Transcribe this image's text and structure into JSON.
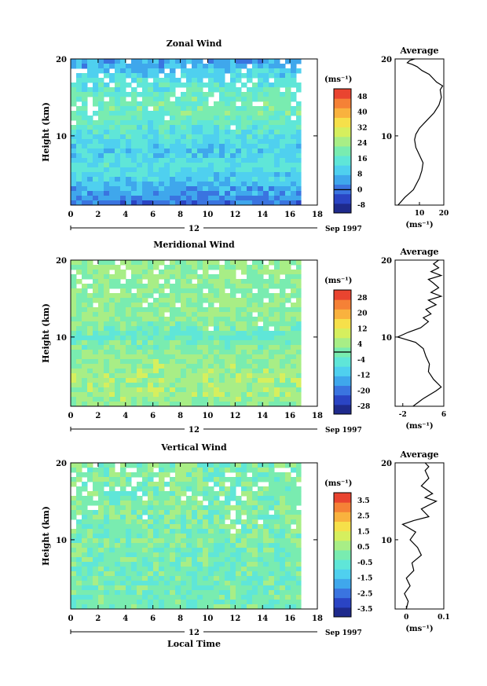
{
  "chart_data": [
    {
      "type": "heatmap",
      "id": "zonal",
      "title": "Zonal Wind",
      "ylabel": "Height (km)",
      "xlim": [
        0,
        18
      ],
      "ylim": [
        1,
        20
      ],
      "x_ticks": [
        0,
        2,
        4,
        6,
        8,
        10,
        12,
        14,
        16,
        18
      ],
      "y_ticks": [
        10,
        20
      ],
      "date_label": "12",
      "month_label": "Sep 1997",
      "data_end_hour": 16.8,
      "colorbar": {
        "unit": "(ms⁻¹)",
        "ticks": [
          -8,
          0,
          8,
          16,
          24,
          32,
          40,
          48
        ],
        "range": [
          -12,
          52
        ],
        "marked_level": 0
      },
      "profile_by_height": [
        {
          "h": 1,
          "v": 0
        },
        {
          "h": 3,
          "v": 6
        },
        {
          "h": 6,
          "v": 14
        },
        {
          "h": 8,
          "v": 10
        },
        {
          "h": 11,
          "v": 16
        },
        {
          "h": 14,
          "v": 20
        },
        {
          "h": 17,
          "v": 14
        },
        {
          "h": 20,
          "v": 4
        }
      ],
      "average": {
        "title": "Average",
        "unit": "(ms⁻¹)",
        "xlim": [
          0,
          20
        ],
        "x_ticks": [
          10,
          20
        ],
        "y_ticks": [
          10,
          20
        ],
        "points": [
          [
            1.2,
            1
          ],
          [
            4,
            2
          ],
          [
            7.5,
            3
          ],
          [
            10,
            4.5
          ],
          [
            11,
            5.5
          ],
          [
            11.5,
            6.5
          ],
          [
            10,
            7.5
          ],
          [
            8.5,
            8.5
          ],
          [
            8,
            9.5
          ],
          [
            8.5,
            10.2
          ],
          [
            10,
            11
          ],
          [
            13,
            12
          ],
          [
            16,
            13
          ],
          [
            18,
            14
          ],
          [
            19,
            15
          ],
          [
            18.5,
            16
          ],
          [
            19.5,
            16.5
          ],
          [
            17,
            17
          ],
          [
            14,
            18
          ],
          [
            11,
            18.5
          ],
          [
            9,
            19
          ],
          [
            7,
            19.3
          ],
          [
            5,
            19.5
          ],
          [
            6,
            19.8
          ],
          [
            8,
            20
          ]
        ]
      }
    },
    {
      "type": "heatmap",
      "id": "meridional",
      "title": "Meridional Wind",
      "ylabel": "Height (km)",
      "xlim": [
        0,
        18
      ],
      "ylim": [
        1,
        20
      ],
      "x_ticks": [
        0,
        2,
        4,
        6,
        8,
        10,
        12,
        14,
        16,
        18
      ],
      "y_ticks": [
        10,
        20
      ],
      "date_label": "12",
      "month_label": "Sep 1997",
      "data_end_hour": 16.8,
      "colorbar": {
        "unit": "(ms⁻¹)",
        "ticks": [
          -28,
          -20,
          -12,
          -4,
          4,
          12,
          20,
          28
        ],
        "range": [
          -32,
          32
        ],
        "marked_level": 0
      },
      "profile_by_height": [
        {
          "h": 1,
          "v": 2
        },
        {
          "h": 3,
          "v": 5
        },
        {
          "h": 6,
          "v": 4
        },
        {
          "h": 9,
          "v": 1
        },
        {
          "h": 10,
          "v": -3
        },
        {
          "h": 12,
          "v": 2
        },
        {
          "h": 15,
          "v": 3
        },
        {
          "h": 18,
          "v": 2
        },
        {
          "h": 20,
          "v": 3
        }
      ],
      "average": {
        "title": "Average",
        "unit": "(ms⁻¹)",
        "xlim": [
          -3.5,
          6
        ],
        "x_ticks": [
          -2,
          6
        ],
        "y_ticks": [
          10,
          20
        ],
        "points": [
          [
            0,
            1
          ],
          [
            2,
            2
          ],
          [
            4.5,
            3
          ],
          [
            5.5,
            3.5
          ],
          [
            4,
            4.5
          ],
          [
            3,
            5.5
          ],
          [
            3.2,
            6.5
          ],
          [
            2.5,
            7.5
          ],
          [
            2,
            8.5
          ],
          [
            0.5,
            9.3
          ],
          [
            -3,
            10
          ],
          [
            -1,
            10.6
          ],
          [
            1.5,
            11.2
          ],
          [
            3,
            12
          ],
          [
            2,
            12.5
          ],
          [
            3.5,
            13
          ],
          [
            2.5,
            13.6
          ],
          [
            4.5,
            14.2
          ],
          [
            3,
            14.8
          ],
          [
            5.5,
            15.3
          ],
          [
            3.5,
            15.8
          ],
          [
            5,
            16.4
          ],
          [
            4,
            17
          ],
          [
            3,
            17.5
          ],
          [
            5.5,
            18
          ],
          [
            3.5,
            18.5
          ],
          [
            5,
            19
          ],
          [
            4,
            19.5
          ],
          [
            5,
            20
          ]
        ]
      }
    },
    {
      "type": "heatmap",
      "id": "vertical",
      "title": "Vertical Wind",
      "ylabel": "Height (km)",
      "xlabel": "Local Time",
      "xlim": [
        0,
        18
      ],
      "ylim": [
        1,
        20
      ],
      "x_ticks": [
        0,
        2,
        4,
        6,
        8,
        10,
        12,
        14,
        16,
        18
      ],
      "y_ticks": [
        10,
        20
      ],
      "date_label": "12",
      "month_label": "Sep 1997",
      "data_end_hour": 16.8,
      "colorbar": {
        "unit": "(ms⁻¹)",
        "ticks": [
          -3.5,
          -2.5,
          -1.5,
          -0.5,
          0.5,
          1.5,
          2.5,
          3.5
        ],
        "range": [
          -4,
          4
        ],
        "marked_level": null
      },
      "profile_by_height": [
        {
          "h": 1,
          "v": -0.2
        },
        {
          "h": 10,
          "v": 0.05
        },
        {
          "h": 20,
          "v": 0.1
        }
      ],
      "average": {
        "title": "Average",
        "unit": "(ms⁻¹)",
        "xlim": [
          -0.03,
          0.1
        ],
        "x_ticks": [
          0.0,
          0.1
        ],
        "y_ticks": [
          10,
          20
        ],
        "points": [
          [
            0.0,
            1
          ],
          [
            0.005,
            2
          ],
          [
            -0.005,
            3
          ],
          [
            0.01,
            4
          ],
          [
            0.0,
            5
          ],
          [
            0.02,
            6
          ],
          [
            0.015,
            7
          ],
          [
            0.04,
            8
          ],
          [
            0.03,
            9
          ],
          [
            0.01,
            10
          ],
          [
            0.025,
            11
          ],
          [
            -0.01,
            12
          ],
          [
            0.02,
            12.5
          ],
          [
            0.06,
            13
          ],
          [
            0.04,
            14
          ],
          [
            0.08,
            15
          ],
          [
            0.05,
            15.5
          ],
          [
            0.07,
            16
          ],
          [
            0.04,
            17
          ],
          [
            0.06,
            18
          ],
          [
            0.05,
            19
          ],
          [
            0.06,
            19.5
          ],
          [
            0.05,
            20
          ]
        ]
      }
    }
  ]
}
